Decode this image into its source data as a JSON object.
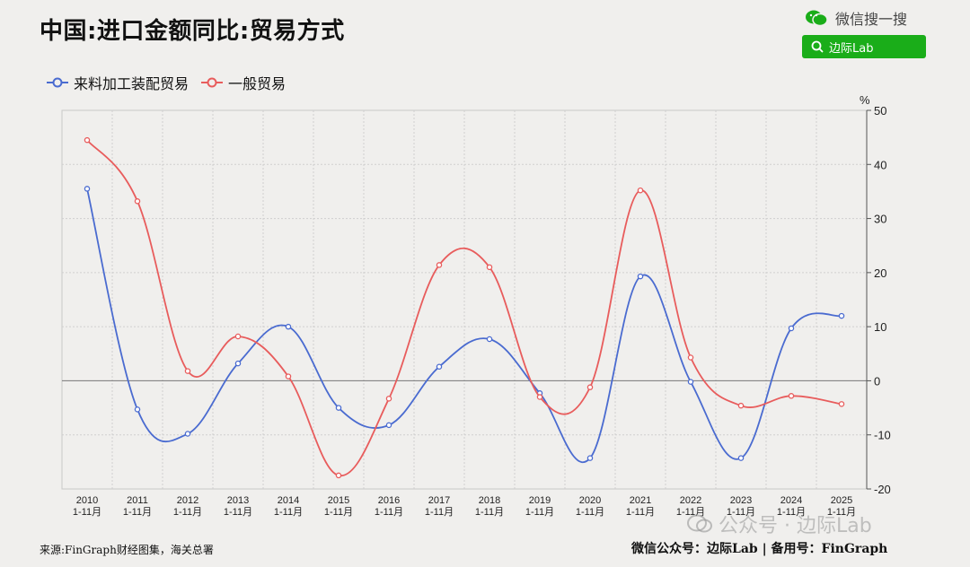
{
  "header": {
    "title": "中国:进口金额同比:贸易方式",
    "wechat_label": "微信搜一搜",
    "search_label": "边际Lab"
  },
  "legend": {
    "series1": "来料加工装配贸易",
    "series2": "一般贸易"
  },
  "footer": {
    "source": "来源:FinGraph财经图集，海关总署",
    "credits": "微信公众号：边际Lab  |  备用号：FinGraph",
    "watermark": "公众号 · 边际Lab"
  },
  "colors": {
    "series1": "#4a6bd0",
    "series2": "#e85c5c",
    "brand": "#1aad19"
  },
  "chart_data": {
    "type": "line",
    "categories": [
      "2010",
      "2011",
      "2012",
      "2013",
      "2014",
      "2015",
      "2016",
      "2017",
      "2018",
      "2019",
      "2020",
      "2021",
      "2022",
      "2023",
      "2024",
      "2025"
    ],
    "category_sub": "1-11月",
    "yunit": "%",
    "ylim": [
      -20,
      50
    ],
    "yticks": [
      50,
      40,
      30,
      20,
      10,
      0,
      -10,
      -20
    ],
    "grid": true,
    "legend_position": "top-left",
    "y_axis_side": "right",
    "series": [
      {
        "name": "来料加工装配贸易",
        "values": [
          35.5,
          -5.3,
          -9.8,
          3.2,
          10.0,
          -5.0,
          -8.2,
          2.6,
          7.7,
          -2.3,
          -14.3,
          19.3,
          -0.2,
          -14.3,
          9.7,
          12.0
        ]
      },
      {
        "name": "一般贸易",
        "values": [
          44.5,
          33.2,
          1.8,
          8.2,
          0.8,
          -17.5,
          -3.3,
          21.4,
          21.0,
          -3.0,
          -1.2,
          35.2,
          4.3,
          -4.6,
          -2.8,
          -4.3
        ]
      }
    ]
  }
}
